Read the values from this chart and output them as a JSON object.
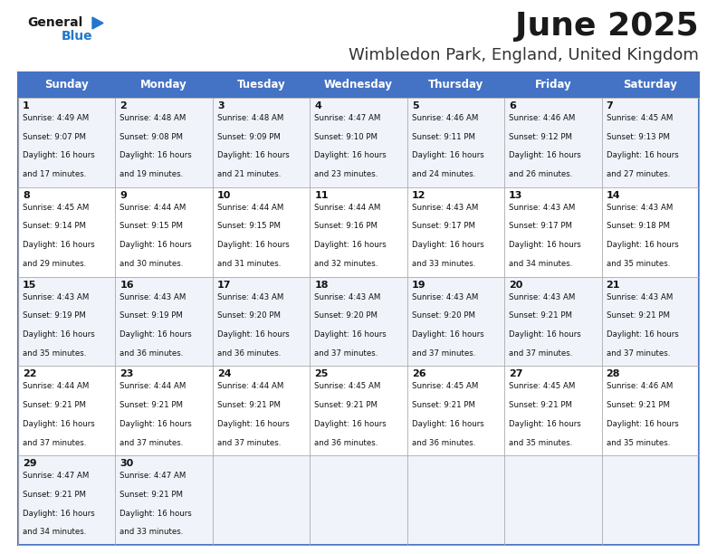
{
  "title": "June 2025",
  "subtitle": "Wimbledon Park, England, United Kingdom",
  "header_bg": "#4472C4",
  "header_text": "#FFFFFF",
  "cell_text": "#111111",
  "grid_color": "#AAAAAA",
  "days_of_week": [
    "Sunday",
    "Monday",
    "Tuesday",
    "Wednesday",
    "Thursday",
    "Friday",
    "Saturday"
  ],
  "row_colors": [
    "#F0F4FA",
    "#FFFFFF",
    "#F0F4FA",
    "#FFFFFF",
    "#F0F4FA"
  ],
  "weeks": [
    [
      {
        "day": 1,
        "sunrise": "4:49 AM",
        "sunset": "9:07 PM",
        "daylight": "16 hours and 17 minutes."
      },
      {
        "day": 2,
        "sunrise": "4:48 AM",
        "sunset": "9:08 PM",
        "daylight": "16 hours and 19 minutes."
      },
      {
        "day": 3,
        "sunrise": "4:48 AM",
        "sunset": "9:09 PM",
        "daylight": "16 hours and 21 minutes."
      },
      {
        "day": 4,
        "sunrise": "4:47 AM",
        "sunset": "9:10 PM",
        "daylight": "16 hours and 23 minutes."
      },
      {
        "day": 5,
        "sunrise": "4:46 AM",
        "sunset": "9:11 PM",
        "daylight": "16 hours and 24 minutes."
      },
      {
        "day": 6,
        "sunrise": "4:46 AM",
        "sunset": "9:12 PM",
        "daylight": "16 hours and 26 minutes."
      },
      {
        "day": 7,
        "sunrise": "4:45 AM",
        "sunset": "9:13 PM",
        "daylight": "16 hours and 27 minutes."
      }
    ],
    [
      {
        "day": 8,
        "sunrise": "4:45 AM",
        "sunset": "9:14 PM",
        "daylight": "16 hours and 29 minutes."
      },
      {
        "day": 9,
        "sunrise": "4:44 AM",
        "sunset": "9:15 PM",
        "daylight": "16 hours and 30 minutes."
      },
      {
        "day": 10,
        "sunrise": "4:44 AM",
        "sunset": "9:15 PM",
        "daylight": "16 hours and 31 minutes."
      },
      {
        "day": 11,
        "sunrise": "4:44 AM",
        "sunset": "9:16 PM",
        "daylight": "16 hours and 32 minutes."
      },
      {
        "day": 12,
        "sunrise": "4:43 AM",
        "sunset": "9:17 PM",
        "daylight": "16 hours and 33 minutes."
      },
      {
        "day": 13,
        "sunrise": "4:43 AM",
        "sunset": "9:17 PM",
        "daylight": "16 hours and 34 minutes."
      },
      {
        "day": 14,
        "sunrise": "4:43 AM",
        "sunset": "9:18 PM",
        "daylight": "16 hours and 35 minutes."
      }
    ],
    [
      {
        "day": 15,
        "sunrise": "4:43 AM",
        "sunset": "9:19 PM",
        "daylight": "16 hours and 35 minutes."
      },
      {
        "day": 16,
        "sunrise": "4:43 AM",
        "sunset": "9:19 PM",
        "daylight": "16 hours and 36 minutes."
      },
      {
        "day": 17,
        "sunrise": "4:43 AM",
        "sunset": "9:20 PM",
        "daylight": "16 hours and 36 minutes."
      },
      {
        "day": 18,
        "sunrise": "4:43 AM",
        "sunset": "9:20 PM",
        "daylight": "16 hours and 37 minutes."
      },
      {
        "day": 19,
        "sunrise": "4:43 AM",
        "sunset": "9:20 PM",
        "daylight": "16 hours and 37 minutes."
      },
      {
        "day": 20,
        "sunrise": "4:43 AM",
        "sunset": "9:21 PM",
        "daylight": "16 hours and 37 minutes."
      },
      {
        "day": 21,
        "sunrise": "4:43 AM",
        "sunset": "9:21 PM",
        "daylight": "16 hours and 37 minutes."
      }
    ],
    [
      {
        "day": 22,
        "sunrise": "4:44 AM",
        "sunset": "9:21 PM",
        "daylight": "16 hours and 37 minutes."
      },
      {
        "day": 23,
        "sunrise": "4:44 AM",
        "sunset": "9:21 PM",
        "daylight": "16 hours and 37 minutes."
      },
      {
        "day": 24,
        "sunrise": "4:44 AM",
        "sunset": "9:21 PM",
        "daylight": "16 hours and 37 minutes."
      },
      {
        "day": 25,
        "sunrise": "4:45 AM",
        "sunset": "9:21 PM",
        "daylight": "16 hours and 36 minutes."
      },
      {
        "day": 26,
        "sunrise": "4:45 AM",
        "sunset": "9:21 PM",
        "daylight": "16 hours and 36 minutes."
      },
      {
        "day": 27,
        "sunrise": "4:45 AM",
        "sunset": "9:21 PM",
        "daylight": "16 hours and 35 minutes."
      },
      {
        "day": 28,
        "sunrise": "4:46 AM",
        "sunset": "9:21 PM",
        "daylight": "16 hours and 35 minutes."
      }
    ],
    [
      {
        "day": 29,
        "sunrise": "4:47 AM",
        "sunset": "9:21 PM",
        "daylight": "16 hours and 34 minutes."
      },
      {
        "day": 30,
        "sunrise": "4:47 AM",
        "sunset": "9:21 PM",
        "daylight": "16 hours and 33 minutes."
      },
      null,
      null,
      null,
      null,
      null
    ]
  ],
  "logo_general_color": "#1a1a1a",
  "logo_blue_color": "#2277CC",
  "logo_triangle_color": "#2277CC",
  "title_color": "#1a1a1a",
  "subtitle_color": "#333333"
}
